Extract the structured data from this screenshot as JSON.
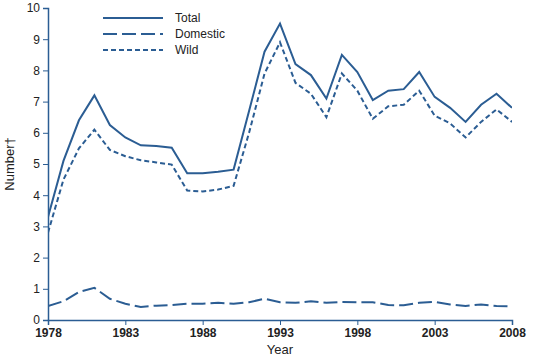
{
  "chart_data": {
    "type": "line",
    "x_label": "Year",
    "y_label": "Number†",
    "x": [
      1978,
      1979,
      1980,
      1981,
      1982,
      1983,
      1984,
      1985,
      1986,
      1987,
      1988,
      1989,
      1990,
      1991,
      1992,
      1993,
      1994,
      1995,
      1996,
      1997,
      1998,
      1999,
      2000,
      2001,
      2002,
      2003,
      2004,
      2005,
      2006,
      2007,
      2008
    ],
    "series": [
      {
        "name": "Total",
        "color": "#2b5d93",
        "line_style": "solid",
        "values": [
          3.3,
          5.1,
          6.4,
          7.2,
          6.25,
          5.85,
          5.6,
          5.58,
          5.52,
          4.7,
          4.7,
          4.75,
          4.82,
          6.7,
          8.6,
          9.5,
          8.2,
          7.85,
          7.1,
          8.5,
          7.95,
          7.05,
          7.35,
          7.4,
          7.95,
          7.15,
          6.8,
          6.35,
          6.9,
          7.25,
          6.8
        ]
      },
      {
        "name": "Domestic",
        "color": "#2b5d93",
        "line_style": "longdash",
        "values": [
          0.45,
          0.6,
          0.9,
          1.03,
          0.68,
          0.52,
          0.42,
          0.46,
          0.48,
          0.52,
          0.52,
          0.55,
          0.52,
          0.57,
          0.68,
          0.57,
          0.55,
          0.6,
          0.55,
          0.58,
          0.57,
          0.57,
          0.48,
          0.47,
          0.55,
          0.58,
          0.5,
          0.45,
          0.5,
          0.45,
          0.44
        ]
      },
      {
        "name": "Wild",
        "color": "#2b5d93",
        "line_style": "dashed",
        "values": [
          2.8,
          4.5,
          5.5,
          6.1,
          5.45,
          5.25,
          5.12,
          5.05,
          4.98,
          4.15,
          4.12,
          4.18,
          4.3,
          6.0,
          7.9,
          8.9,
          7.6,
          7.25,
          6.5,
          7.9,
          7.35,
          6.45,
          6.85,
          6.9,
          7.35,
          6.55,
          6.3,
          5.85,
          6.35,
          6.75,
          6.35
        ]
      }
    ],
    "xlim": [
      1978,
      2008
    ],
    "xticks": [
      1978,
      1983,
      1988,
      1993,
      1998,
      2003,
      2008
    ],
    "ylim": [
      0,
      10
    ],
    "yticks": [
      0,
      1,
      2,
      3,
      4,
      5,
      6,
      7,
      8,
      9,
      10
    ],
    "grid": false,
    "legend": "upper left"
  }
}
